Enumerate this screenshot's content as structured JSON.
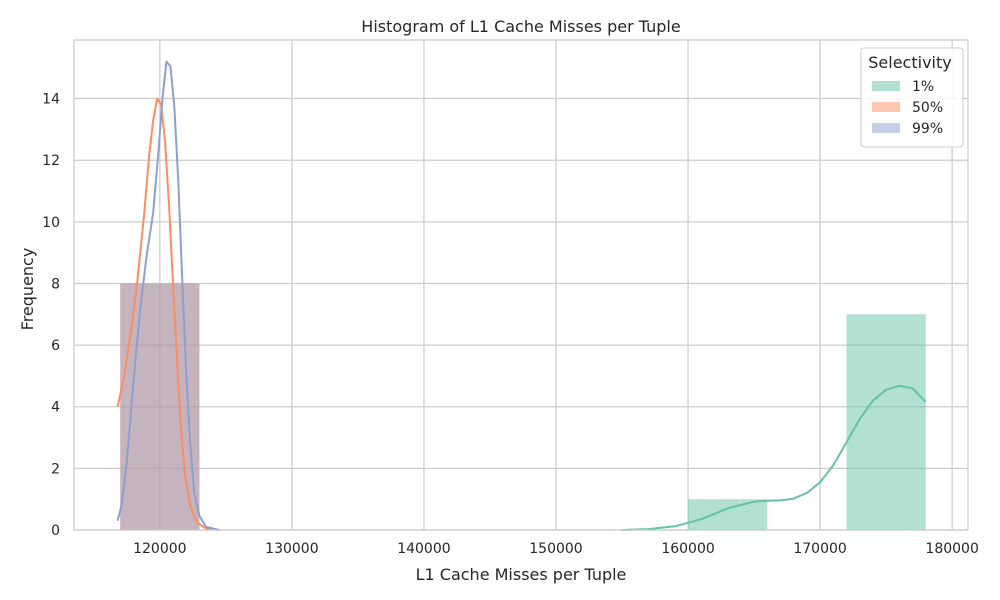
{
  "chart_data": {
    "type": "bar",
    "title": "Histogram of L1 Cache Misses per Tuple",
    "xlabel": "L1 Cache Misses per Tuple",
    "ylabel": "Frequency",
    "xlim": [
      113500,
      181200
    ],
    "ylim": [
      0,
      15.9
    ],
    "xticks": [
      120000,
      130000,
      140000,
      150000,
      160000,
      170000,
      180000
    ],
    "yticks": [
      0,
      2,
      4,
      6,
      8,
      10,
      12,
      14
    ],
    "grid": true,
    "legend": {
      "title": "Selectivity",
      "position": "top-right",
      "entries": [
        "1%",
        "50%",
        "99%"
      ]
    },
    "series": [
      {
        "name": "1%",
        "color": "#66c2a5",
        "bins": [
          {
            "x0": 160000,
            "x1": 166000,
            "count": 1
          },
          {
            "x0": 172000,
            "x1": 178000,
            "count": 7
          }
        ],
        "kde": [
          [
            155000,
            0
          ],
          [
            157000,
            0.03
          ],
          [
            159000,
            0.12
          ],
          [
            161000,
            0.35
          ],
          [
            163000,
            0.7
          ],
          [
            165000,
            0.92
          ],
          [
            166000,
            0.95
          ],
          [
            167000,
            0.96
          ],
          [
            168000,
            1.02
          ],
          [
            169000,
            1.2
          ],
          [
            170000,
            1.55
          ],
          [
            171000,
            2.1
          ],
          [
            172000,
            2.85
          ],
          [
            173000,
            3.6
          ],
          [
            174000,
            4.2
          ],
          [
            175000,
            4.55
          ],
          [
            176000,
            4.68
          ],
          [
            177000,
            4.6
          ],
          [
            178000,
            4.15
          ]
        ]
      },
      {
        "name": "50%",
        "color": "#fc8d62",
        "bins": [
          {
            "x0": 117000,
            "x1": 123000,
            "count": 8
          }
        ],
        "kde": [
          [
            116800,
            4.0
          ],
          [
            117300,
            5.0
          ],
          [
            117800,
            6.4
          ],
          [
            118300,
            8.1
          ],
          [
            118800,
            10.2
          ],
          [
            119200,
            12.2
          ],
          [
            119500,
            13.3
          ],
          [
            119800,
            14.0
          ],
          [
            120100,
            13.8
          ],
          [
            120400,
            12.6
          ],
          [
            120700,
            10.5
          ],
          [
            121000,
            8.0
          ],
          [
            121300,
            5.5
          ],
          [
            121600,
            3.3
          ],
          [
            121900,
            1.8
          ],
          [
            122300,
            0.8
          ],
          [
            122800,
            0.25
          ],
          [
            123500,
            0.05
          ],
          [
            124500,
            0
          ]
        ]
      },
      {
        "name": "99%",
        "color": "#8da0cb",
        "bins": [
          {
            "x0": 117000,
            "x1": 123000,
            "count": 8
          }
        ],
        "kde": [
          [
            116800,
            0.3
          ],
          [
            117100,
            0.8
          ],
          [
            117500,
            2.2
          ],
          [
            118000,
            4.8
          ],
          [
            118500,
            7.1
          ],
          [
            119000,
            8.9
          ],
          [
            119500,
            10.3
          ],
          [
            119900,
            12.3
          ],
          [
            120200,
            14.0
          ],
          [
            120500,
            15.2
          ],
          [
            120800,
            15.05
          ],
          [
            121100,
            13.7
          ],
          [
            121400,
            11.3
          ],
          [
            121700,
            8.1
          ],
          [
            122000,
            5.1
          ],
          [
            122300,
            2.8
          ],
          [
            122600,
            1.2
          ],
          [
            123000,
            0.45
          ],
          [
            123500,
            0.1
          ],
          [
            124500,
            0
          ]
        ]
      }
    ]
  }
}
